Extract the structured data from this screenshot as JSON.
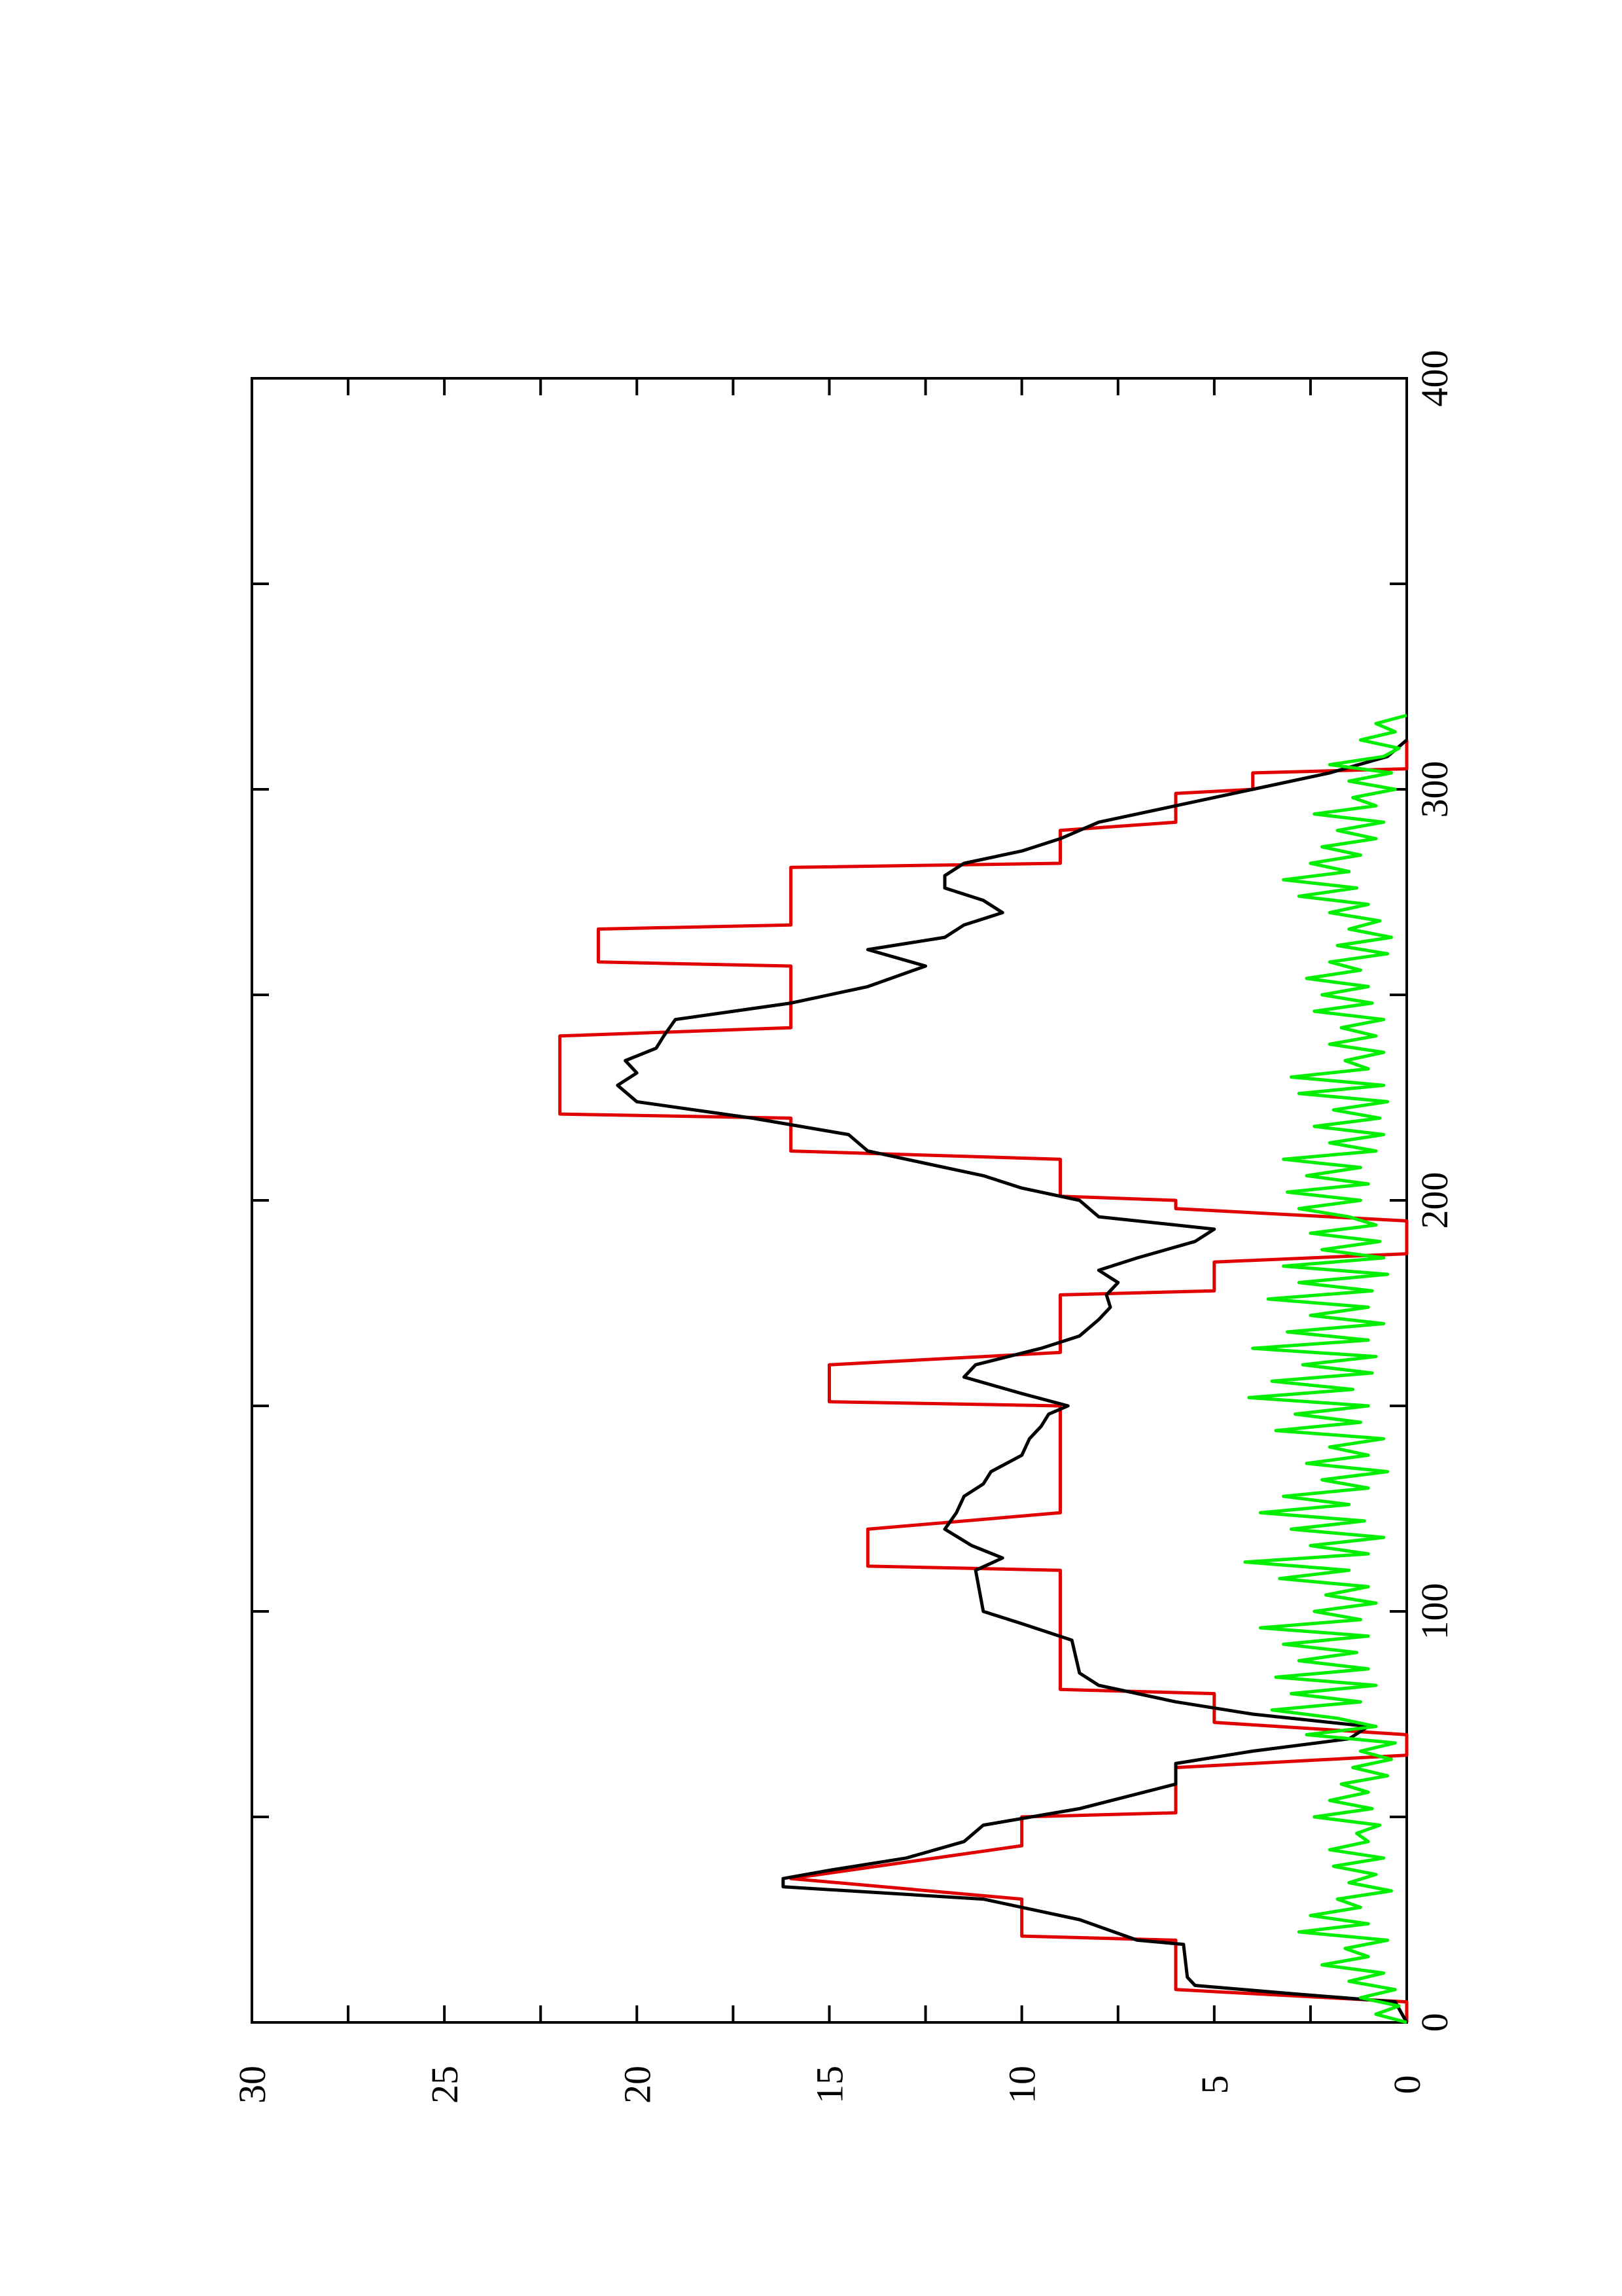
{
  "chart_data": {
    "type": "line",
    "title": "",
    "xlabel": "",
    "ylabel": "",
    "orientation": "rotated-90-ccw",
    "xlim": [
      0,
      400
    ],
    "ylim": [
      0,
      30
    ],
    "xticks": [
      0,
      100,
      200,
      300,
      400
    ],
    "yticks": [
      0,
      5,
      10,
      15,
      20,
      25,
      30
    ],
    "grid": false,
    "legend": "none",
    "series": [
      {
        "color": "#e00000",
        "style": "step",
        "points": [
          [
            0,
            0
          ],
          [
            5,
            0
          ],
          [
            8,
            6
          ],
          [
            20,
            6
          ],
          [
            21,
            10
          ],
          [
            30,
            10
          ],
          [
            35,
            16
          ],
          [
            43,
            10
          ],
          [
            50,
            10
          ],
          [
            51,
            6
          ],
          [
            62,
            6
          ],
          [
            65,
            0
          ],
          [
            70,
            0
          ],
          [
            73,
            5
          ],
          [
            80,
            5
          ],
          [
            81,
            9
          ],
          [
            110,
            9
          ],
          [
            111,
            14
          ],
          [
            120,
            14
          ],
          [
            124,
            9
          ],
          [
            150,
            9
          ],
          [
            151,
            15
          ],
          [
            160,
            15
          ],
          [
            163,
            9
          ],
          [
            177,
            9
          ],
          [
            178,
            5
          ],
          [
            185,
            5
          ],
          [
            187,
            0
          ],
          [
            195,
            0
          ],
          [
            198,
            6
          ],
          [
            200,
            6
          ],
          [
            201,
            9
          ],
          [
            210,
            9
          ],
          [
            212,
            16
          ],
          [
            220,
            16
          ],
          [
            221,
            22
          ],
          [
            240,
            22
          ],
          [
            242,
            16
          ],
          [
            257,
            16
          ],
          [
            258,
            21
          ],
          [
            266,
            21
          ],
          [
            267,
            16
          ],
          [
            281,
            16
          ],
          [
            282,
            9
          ],
          [
            290,
            9
          ],
          [
            292,
            6
          ],
          [
            299,
            6
          ],
          [
            300,
            4
          ],
          [
            304,
            4
          ],
          [
            305,
            0
          ],
          [
            312,
            0
          ]
        ]
      },
      {
        "color": "#000000",
        "style": "line",
        "points": [
          [
            0,
            0
          ],
          [
            5,
            0.3
          ],
          [
            7,
            3
          ],
          [
            9,
            5.5
          ],
          [
            11,
            5.7
          ],
          [
            19,
            5.8
          ],
          [
            20,
            7
          ],
          [
            25,
            8.5
          ],
          [
            30,
            11
          ],
          [
            33,
            16.2
          ],
          [
            35,
            16.2
          ],
          [
            37,
            15
          ],
          [
            40,
            13
          ],
          [
            44,
            11.5
          ],
          [
            48,
            11
          ],
          [
            52,
            8.5
          ],
          [
            58,
            6
          ],
          [
            63,
            6
          ],
          [
            66,
            4
          ],
          [
            69,
            1.5
          ],
          [
            72,
            1
          ],
          [
            75,
            4
          ],
          [
            78,
            6
          ],
          [
            82,
            8
          ],
          [
            85,
            8.5
          ],
          [
            93,
            8.7
          ],
          [
            97,
            10
          ],
          [
            100,
            11
          ],
          [
            110,
            11.2
          ],
          [
            113,
            10.5
          ],
          [
            116,
            11.3
          ],
          [
            120,
            12
          ],
          [
            124,
            11.7
          ],
          [
            128,
            11.5
          ],
          [
            131,
            11
          ],
          [
            134,
            10.8
          ],
          [
            138,
            10
          ],
          [
            142,
            9.8
          ],
          [
            145,
            9.5
          ],
          [
            148,
            9.3
          ],
          [
            150,
            8.8
          ],
          [
            153,
            10
          ],
          [
            157,
            11.5
          ],
          [
            160,
            11.2
          ],
          [
            164,
            9.5
          ],
          [
            167,
            8.5
          ],
          [
            171,
            8
          ],
          [
            174,
            7.7
          ],
          [
            177,
            7.8
          ],
          [
            180,
            7.5
          ],
          [
            183,
            8
          ],
          [
            186,
            7
          ],
          [
            190,
            5.5
          ],
          [
            193,
            5
          ],
          [
            196,
            8
          ],
          [
            200,
            8.5
          ],
          [
            203,
            10
          ],
          [
            206,
            11
          ],
          [
            209,
            12.5
          ],
          [
            212,
            14
          ],
          [
            216,
            14.5
          ],
          [
            220,
            17
          ],
          [
            224,
            20
          ],
          [
            228,
            20.5
          ],
          [
            231,
            20
          ],
          [
            234,
            20.3
          ],
          [
            237,
            19.5
          ],
          [
            240,
            19.3
          ],
          [
            244,
            19
          ],
          [
            248,
            16
          ],
          [
            252,
            14
          ],
          [
            257,
            12.5
          ],
          [
            261,
            14
          ],
          [
            264,
            12
          ],
          [
            267,
            11.5
          ],
          [
            270,
            10.5
          ],
          [
            273,
            11
          ],
          [
            276,
            12
          ],
          [
            279,
            12
          ],
          [
            282,
            11.5
          ],
          [
            285,
            10
          ],
          [
            288,
            9
          ],
          [
            292,
            8
          ],
          [
            296,
            6
          ],
          [
            300,
            4
          ],
          [
            304,
            2
          ],
          [
            308,
            0.5
          ],
          [
            312,
            0
          ]
        ]
      },
      {
        "color": "#00ee00",
        "style": "line",
        "points": [
          [
            0,
            0
          ],
          [
            2,
            0.8
          ],
          [
            4,
            0.2
          ],
          [
            6,
            1.2
          ],
          [
            8,
            0.3
          ],
          [
            10,
            1.5
          ],
          [
            12,
            0.6
          ],
          [
            14,
            2.2
          ],
          [
            16,
            1
          ],
          [
            18,
            1.6
          ],
          [
            20,
            0.5
          ],
          [
            22,
            2.8
          ],
          [
            24,
            1
          ],
          [
            26,
            2.5
          ],
          [
            28,
            1.2
          ],
          [
            30,
            1.8
          ],
          [
            32,
            0.4
          ],
          [
            34,
            1.5
          ],
          [
            36,
            0.8
          ],
          [
            38,
            1.9
          ],
          [
            40,
            0.6
          ],
          [
            42,
            2
          ],
          [
            44,
            1
          ],
          [
            46,
            1.3
          ],
          [
            48,
            0.7
          ],
          [
            50,
            2.4
          ],
          [
            52,
            0.9
          ],
          [
            54,
            2
          ],
          [
            56,
            1
          ],
          [
            58,
            1.7
          ],
          [
            60,
            0.5
          ],
          [
            62,
            1.4
          ],
          [
            64,
            0.4
          ],
          [
            66,
            1.2
          ],
          [
            68,
            0.3
          ],
          [
            70,
            2.6
          ],
          [
            72,
            0.8
          ],
          [
            74,
            1.8
          ],
          [
            76,
            3.5
          ],
          [
            78,
            1.2
          ],
          [
            80,
            3
          ],
          [
            82,
            0.8
          ],
          [
            84,
            3.4
          ],
          [
            86,
            1
          ],
          [
            88,
            2.8
          ],
          [
            90,
            1.3
          ],
          [
            92,
            3.2
          ],
          [
            94,
            1
          ],
          [
            96,
            3.8
          ],
          [
            98,
            1.2
          ],
          [
            100,
            2.4
          ],
          [
            102,
            0.8
          ],
          [
            104,
            2.1
          ],
          [
            106,
            1
          ],
          [
            108,
            3.3
          ],
          [
            110,
            1.5
          ],
          [
            112,
            4.2
          ],
          [
            114,
            1
          ],
          [
            116,
            2.5
          ],
          [
            118,
            0.6
          ],
          [
            120,
            3
          ],
          [
            122,
            1.1
          ],
          [
            124,
            3.8
          ],
          [
            126,
            1.5
          ],
          [
            128,
            3.2
          ],
          [
            130,
            1
          ],
          [
            132,
            2.2
          ],
          [
            134,
            0.5
          ],
          [
            136,
            2.6
          ],
          [
            138,
            1
          ],
          [
            140,
            2
          ],
          [
            142,
            0.6
          ],
          [
            144,
            3.4
          ],
          [
            146,
            1.2
          ],
          [
            148,
            2.9
          ],
          [
            150,
            1
          ],
          [
            152,
            4.1
          ],
          [
            154,
            1.4
          ],
          [
            156,
            3.5
          ],
          [
            158,
            0.9
          ],
          [
            160,
            2.7
          ],
          [
            162,
            0.8
          ],
          [
            164,
            4
          ],
          [
            166,
            1
          ],
          [
            168,
            3.1
          ],
          [
            170,
            0.6
          ],
          [
            172,
            2.5
          ],
          [
            174,
            1
          ],
          [
            176,
            3.6
          ],
          [
            178,
            0.9
          ],
          [
            180,
            2.8
          ],
          [
            182,
            0.5
          ],
          [
            184,
            3.2
          ],
          [
            186,
            0.6
          ],
          [
            188,
            2.2
          ],
          [
            190,
            0.7
          ],
          [
            192,
            2.5
          ],
          [
            194,
            0.8
          ],
          [
            196,
            1.5
          ],
          [
            198,
            2.8
          ],
          [
            200,
            1.2
          ],
          [
            202,
            3.1
          ],
          [
            204,
            1
          ],
          [
            206,
            2.6
          ],
          [
            208,
            1.2
          ],
          [
            210,
            3.2
          ],
          [
            212,
            0.8
          ],
          [
            214,
            2
          ],
          [
            216,
            0.6
          ],
          [
            218,
            2.4
          ],
          [
            220,
            0.7
          ],
          [
            222,
            1.9
          ],
          [
            224,
            0.5
          ],
          [
            226,
            2.8
          ],
          [
            228,
            0.6
          ],
          [
            230,
            3
          ],
          [
            232,
            1
          ],
          [
            234,
            1.6
          ],
          [
            236,
            0.6
          ],
          [
            238,
            2
          ],
          [
            240,
            0.8
          ],
          [
            242,
            1.7
          ],
          [
            244,
            0.6
          ],
          [
            246,
            2.4
          ],
          [
            248,
            0.9
          ],
          [
            250,
            2.2
          ],
          [
            252,
            1
          ],
          [
            254,
            2.6
          ],
          [
            256,
            1.2
          ],
          [
            258,
            2
          ],
          [
            260,
            0.5
          ],
          [
            262,
            1.8
          ],
          [
            264,
            0.4
          ],
          [
            266,
            1.5
          ],
          [
            268,
            0.7
          ],
          [
            270,
            2
          ],
          [
            272,
            1
          ],
          [
            274,
            2.8
          ],
          [
            276,
            1.3
          ],
          [
            278,
            3.2
          ],
          [
            280,
            1.5
          ],
          [
            282,
            2.5
          ],
          [
            284,
            1.2
          ],
          [
            286,
            2.2
          ],
          [
            288,
            0.8
          ],
          [
            290,
            1.8
          ],
          [
            292,
            0.6
          ],
          [
            294,
            2.4
          ],
          [
            296,
            0.8
          ],
          [
            298,
            1.4
          ],
          [
            300,
            0.3
          ],
          [
            302,
            1.5
          ],
          [
            304,
            0.4
          ],
          [
            306,
            2
          ],
          [
            308,
            0.6
          ],
          [
            310,
            0.2
          ],
          [
            312,
            1.2
          ],
          [
            314,
            0.3
          ],
          [
            316,
            0.8
          ],
          [
            318,
            0
          ]
        ]
      }
    ]
  }
}
